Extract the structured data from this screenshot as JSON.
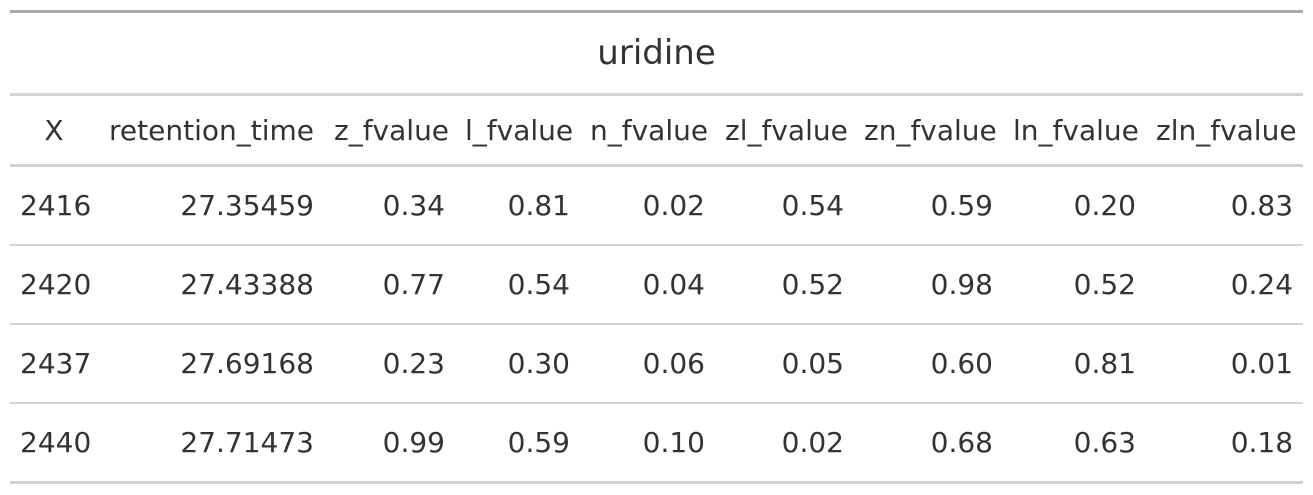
{
  "chart_data": {
    "type": "table",
    "title": "uridine",
    "columns": [
      "X",
      "retention_time",
      "z_fvalue",
      "l_fvalue",
      "n_fvalue",
      "zl_fvalue",
      "zn_fvalue",
      "ln_fvalue",
      "zln_fvalue"
    ],
    "rows": [
      [
        "2416",
        "27.35459",
        "0.34",
        "0.81",
        "0.02",
        "0.54",
        "0.59",
        "0.20",
        "0.83"
      ],
      [
        "2420",
        "27.43388",
        "0.77",
        "0.54",
        "0.04",
        "0.52",
        "0.98",
        "0.52",
        "0.24"
      ],
      [
        "2437",
        "27.69168",
        "0.23",
        "0.30",
        "0.06",
        "0.05",
        "0.60",
        "0.81",
        "0.01"
      ],
      [
        "2440",
        "27.71473",
        "0.99",
        "0.59",
        "0.10",
        "0.02",
        "0.68",
        "0.63",
        "0.18"
      ]
    ]
  }
}
